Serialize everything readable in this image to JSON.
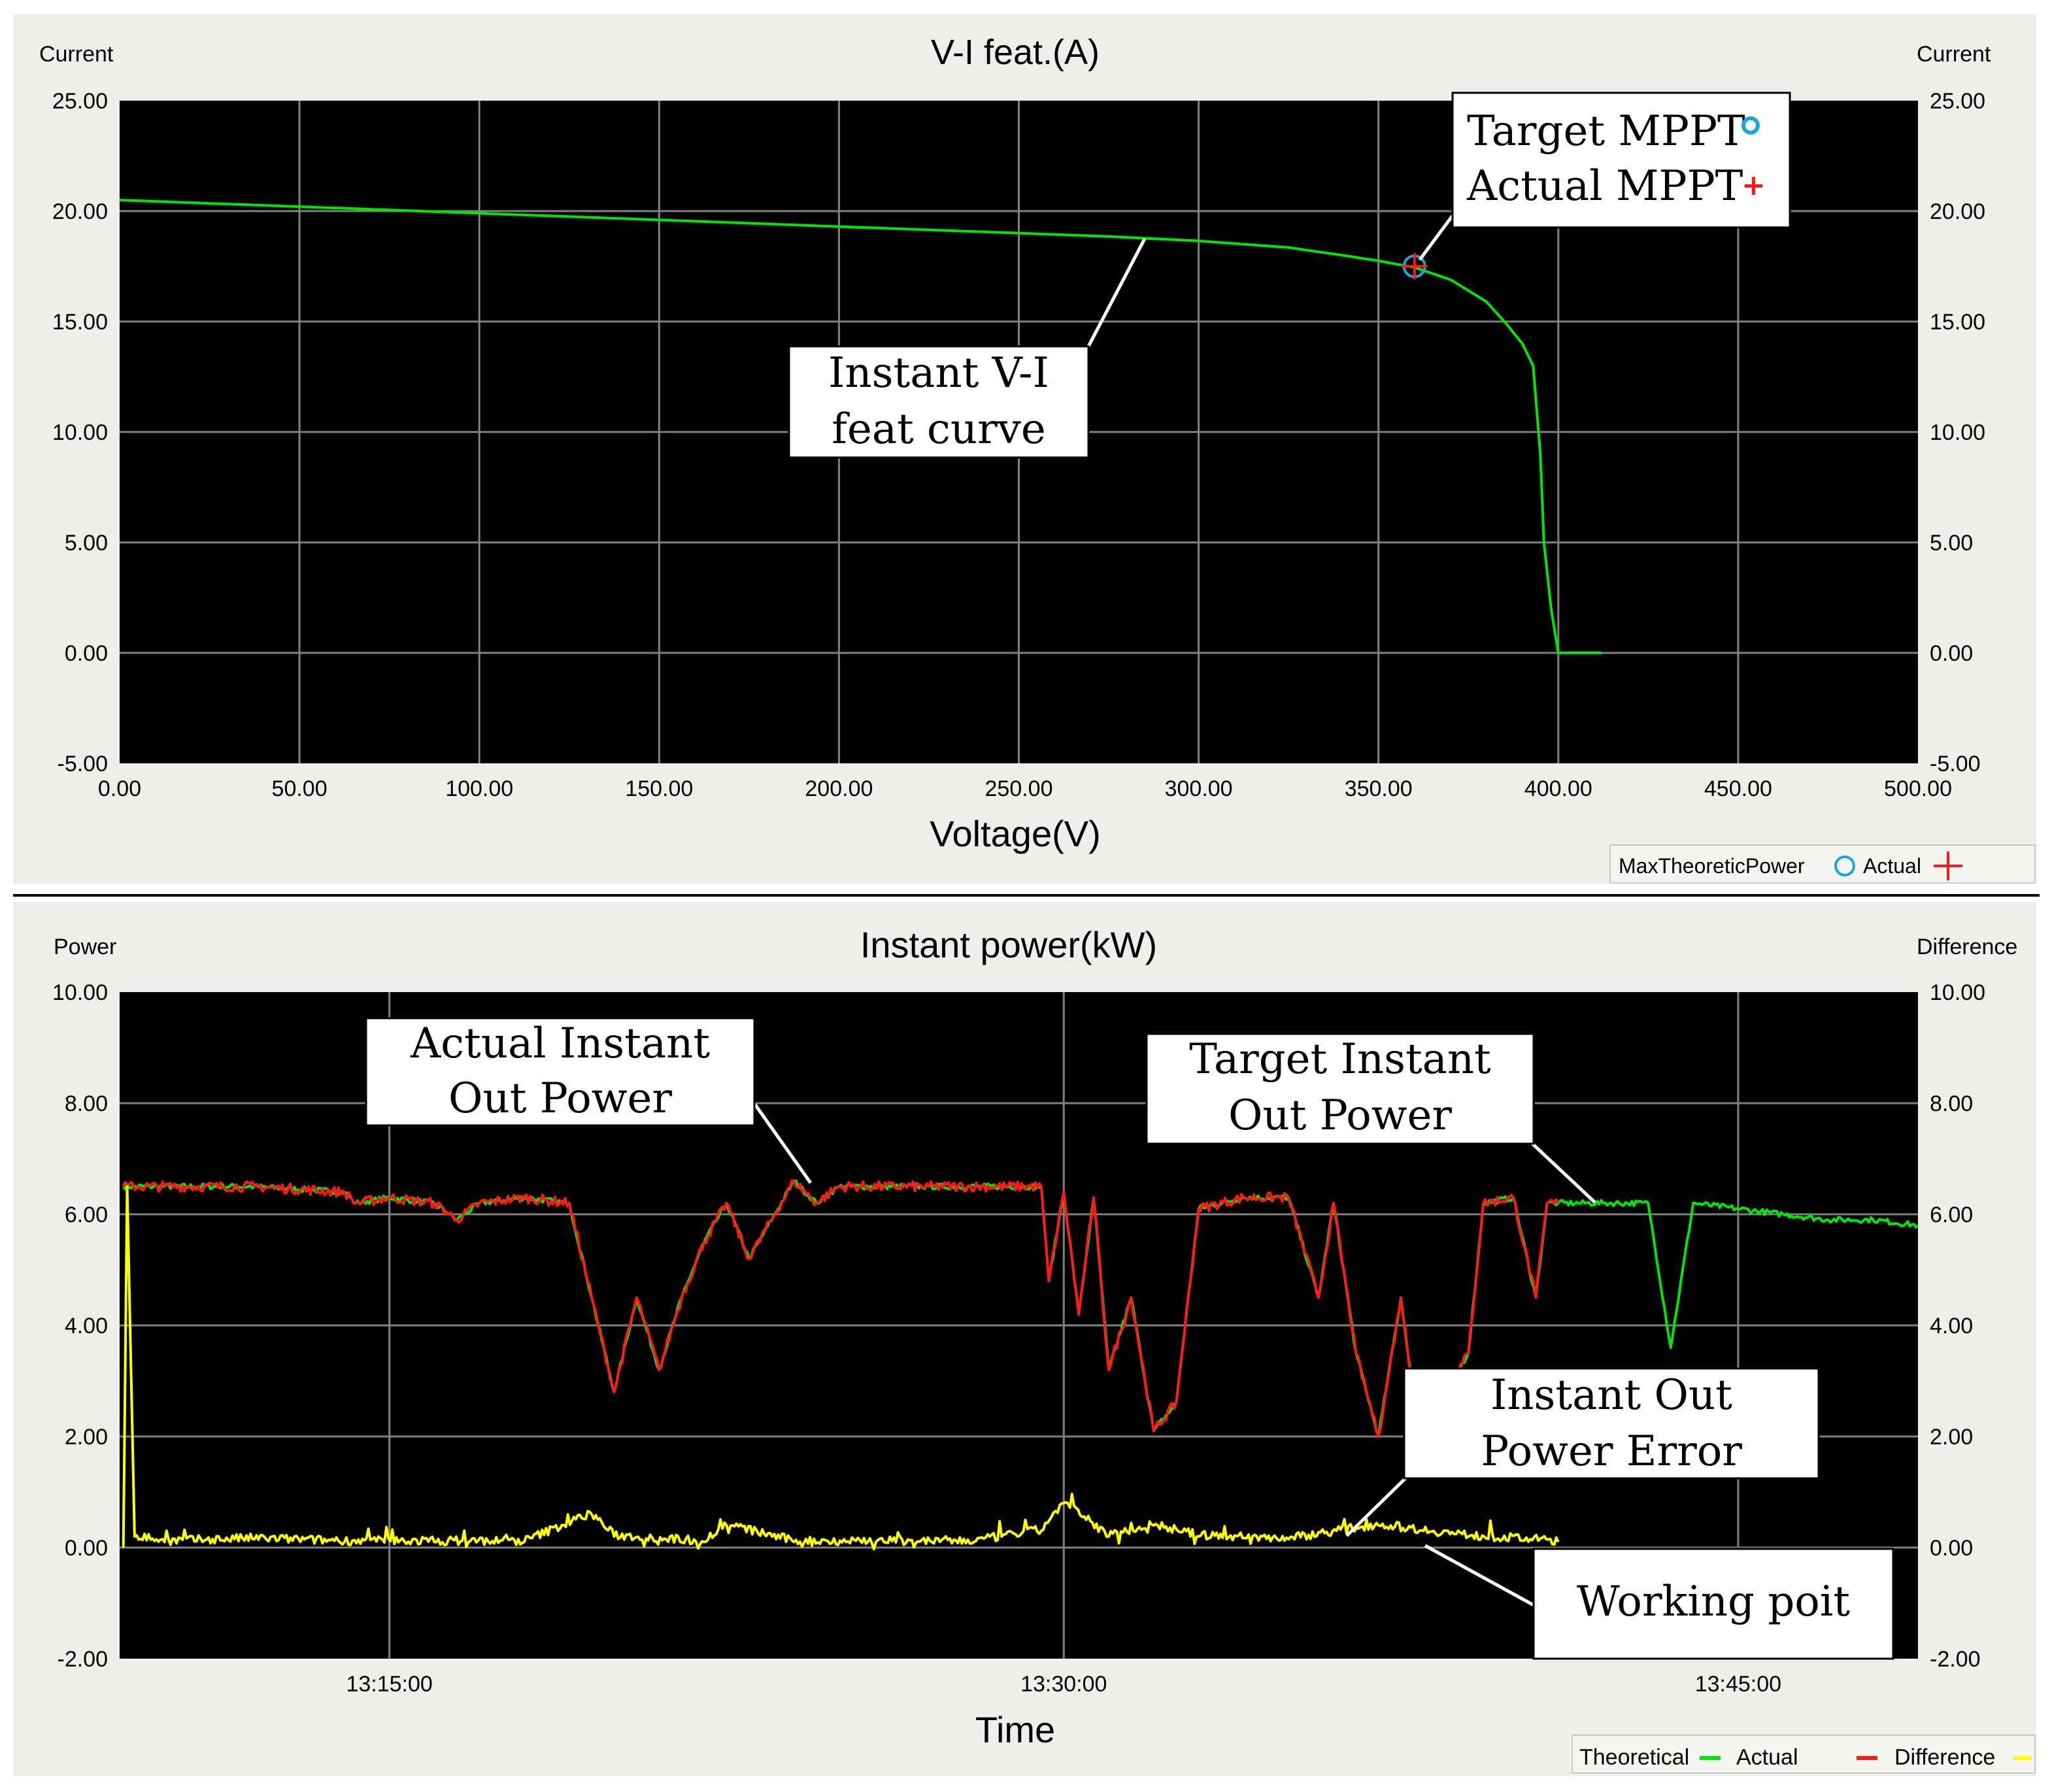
{
  "colors": {
    "plot_bg": "#000000",
    "grid": "#808080",
    "panel_bg": "#eeeeea",
    "theoretical": "#00e600",
    "actual": "#ff1a1a",
    "difference": "#ffff00",
    "target_marker": "#19a6d8"
  },
  "chart_data": [
    {
      "type": "line",
      "title": "V-I feat.(A)",
      "xlabel": "Voltage(V)",
      "ylabel_left": "Current",
      "ylabel_right": "Current",
      "xlim": [
        0,
        500
      ],
      "ylim": [
        -5,
        25
      ],
      "x_ticks": [
        "0.00",
        "50.00",
        "100.00",
        "150.00",
        "200.00",
        "250.00",
        "300.00",
        "350.00",
        "400.00",
        "450.00",
        "500.00"
      ],
      "y_ticks": [
        "25.00",
        "20.00",
        "15.00",
        "10.00",
        "5.00",
        "0.00",
        "-5.00"
      ],
      "grid": true,
      "series": [
        {
          "role": "vi_curve",
          "color": "#00e600",
          "points": [
            [
              0,
              20.5
            ],
            [
              25,
              20.35
            ],
            [
              50,
              20.2
            ],
            [
              75,
              20.05
            ],
            [
              100,
              19.9
            ],
            [
              125,
              19.75
            ],
            [
              150,
              19.6
            ],
            [
              175,
              19.45
            ],
            [
              200,
              19.3
            ],
            [
              225,
              19.15
            ],
            [
              250,
              19.0
            ],
            [
              275,
              18.85
            ],
            [
              300,
              18.65
            ],
            [
              325,
              18.35
            ],
            [
              340,
              18.0
            ],
            [
              350,
              17.75
            ],
            [
              360,
              17.45
            ],
            [
              370,
              16.9
            ],
            [
              380,
              15.9
            ],
            [
              385,
              15.0
            ],
            [
              390,
              14.0
            ],
            [
              393,
              13.0
            ],
            [
              395,
              9.0
            ],
            [
              396,
              5.0
            ],
            [
              398,
              2.0
            ],
            [
              400,
              0.0
            ],
            [
              412,
              0.0
            ]
          ]
        }
      ],
      "markers": {
        "target": {
          "x": 360,
          "y": 17.5
        },
        "actual": {
          "x": 360,
          "y": 17.5
        }
      },
      "legend": {
        "placement": "bottom-right",
        "items": [
          {
            "label": "MaxTheoreticPower",
            "symbol": "circle",
            "color": "#19a6d8"
          },
          {
            "label": "Actual",
            "symbol": "cross",
            "color": "#ff1a1a"
          }
        ]
      },
      "annotations": {
        "mppt_lines": [
          "Target MPPT",
          "Actual MPPT"
        ],
        "curve_lines": [
          "Instant V-I",
          "feat curve"
        ]
      }
    },
    {
      "type": "line",
      "title": "Instant power(kW)",
      "xlabel": "Time",
      "ylabel_left": "Power",
      "ylabel_right": "Difference",
      "xlim": [
        "13:09:00",
        "13:49:00"
      ],
      "ylim": [
        -2,
        10
      ],
      "x_ticks": [
        "13:15:00",
        "13:30:00",
        "13:45:00"
      ],
      "y_ticks": [
        "10.00",
        "8.00",
        "6.00",
        "4.00",
        "2.00",
        "0.00",
        "-2.00"
      ],
      "grid": true,
      "series": [
        {
          "name": "Theoretical",
          "color": "#00e600",
          "points": [
            [
              "13:09:05",
              6.5
            ],
            [
              "13:10",
              6.5
            ],
            [
              "13:12",
              6.5
            ],
            [
              "13:14",
              6.4
            ],
            [
              "13:14:15",
              6.2
            ],
            [
              "13:15",
              6.3
            ],
            [
              "13:16",
              6.2
            ],
            [
              "13:16:30",
              5.9
            ],
            [
              "13:17",
              6.2
            ],
            [
              "13:18",
              6.3
            ],
            [
              "13:19",
              6.2
            ],
            [
              "13:19:30",
              4.5
            ],
            [
              "13:20",
              2.8
            ],
            [
              "13:20:30",
              4.5
            ],
            [
              "13:21",
              3.2
            ],
            [
              "13:21:30",
              4.5
            ],
            [
              "13:22",
              5.5
            ],
            [
              "13:22:30",
              6.2
            ],
            [
              "13:23",
              5.2
            ],
            [
              "13:24",
              6.6
            ],
            [
              "13:24:30",
              6.2
            ],
            [
              "13:25",
              6.5
            ],
            [
              "13:27",
              6.5
            ],
            [
              "13:29:30",
              6.5
            ],
            [
              "13:29:40",
              4.8
            ],
            [
              "13:30",
              6.4
            ],
            [
              "13:30:20",
              4.2
            ],
            [
              "13:30:40",
              6.3
            ],
            [
              "13:31",
              3.2
            ],
            [
              "13:31:30",
              4.5
            ],
            [
              "13:32",
              2.1
            ],
            [
              "13:32:30",
              2.6
            ],
            [
              "13:33",
              6.1
            ],
            [
              "13:34",
              6.3
            ],
            [
              "13:35",
              6.3
            ],
            [
              "13:35:40",
              4.5
            ],
            [
              "13:36",
              6.2
            ],
            [
              "13:36:30",
              3.5
            ],
            [
              "13:37",
              2.0
            ],
            [
              "13:37:30",
              4.5
            ],
            [
              "13:38",
              1.3
            ],
            [
              "13:38:30",
              2.8
            ],
            [
              "13:39",
              3.5
            ],
            [
              "13:39:20",
              6.2
            ],
            [
              "13:40",
              6.3
            ],
            [
              "13:40:30",
              4.5
            ],
            [
              "13:40:45",
              6.2
            ],
            [
              "13:41",
              6.2
            ],
            [
              "13:42",
              6.2
            ],
            [
              "13:43",
              6.2
            ],
            [
              "13:43:30",
              3.6
            ],
            [
              "13:44",
              6.2
            ],
            [
              "13:45",
              6.1
            ],
            [
              "13:46",
              6.0
            ],
            [
              "13:47",
              5.9
            ],
            [
              "13:48",
              5.9
            ],
            [
              "13:49",
              5.8
            ]
          ]
        },
        {
          "name": "Actual",
          "color": "#ff1a1a",
          "points": [
            [
              "13:09:05",
              6.5
            ],
            [
              "13:10",
              6.5
            ],
            [
              "13:12",
              6.5
            ],
            [
              "13:14",
              6.4
            ],
            [
              "13:14:15",
              6.2
            ],
            [
              "13:15",
              6.3
            ],
            [
              "13:16",
              6.2
            ],
            [
              "13:16:30",
              5.9
            ],
            [
              "13:17",
              6.2
            ],
            [
              "13:18",
              6.3
            ],
            [
              "13:19",
              6.2
            ],
            [
              "13:19:30",
              4.5
            ],
            [
              "13:20",
              2.8
            ],
            [
              "13:20:30",
              4.5
            ],
            [
              "13:21",
              3.2
            ],
            [
              "13:21:30",
              4.5
            ],
            [
              "13:22",
              5.5
            ],
            [
              "13:22:30",
              6.2
            ],
            [
              "13:23",
              5.2
            ],
            [
              "13:24",
              6.6
            ],
            [
              "13:24:30",
              6.2
            ],
            [
              "13:25",
              6.5
            ],
            [
              "13:27",
              6.5
            ],
            [
              "13:29:30",
              6.5
            ],
            [
              "13:29:40",
              4.8
            ],
            [
              "13:30",
              6.4
            ],
            [
              "13:30:20",
              4.2
            ],
            [
              "13:30:40",
              6.3
            ],
            [
              "13:31",
              3.2
            ],
            [
              "13:31:30",
              4.5
            ],
            [
              "13:32",
              2.1
            ],
            [
              "13:32:30",
              2.6
            ],
            [
              "13:33",
              6.1
            ],
            [
              "13:34",
              6.3
            ],
            [
              "13:35",
              6.3
            ],
            [
              "13:35:40",
              4.5
            ],
            [
              "13:36",
              6.2
            ],
            [
              "13:36:30",
              3.5
            ],
            [
              "13:37",
              2.0
            ],
            [
              "13:37:30",
              4.5
            ],
            [
              "13:38",
              1.3
            ],
            [
              "13:38:30",
              2.8
            ],
            [
              "13:39",
              3.5
            ],
            [
              "13:39:20",
              6.2
            ],
            [
              "13:40",
              6.3
            ],
            [
              "13:40:30",
              4.5
            ],
            [
              "13:40:45",
              6.2
            ],
            [
              "13:41",
              6.2
            ]
          ]
        },
        {
          "name": "Difference",
          "color": "#ffff00",
          "points": [
            [
              "13:09:05",
              0.0
            ],
            [
              "13:09:10",
              6.5
            ],
            [
              "13:09:20",
              0.2
            ],
            [
              "13:10",
              0.1
            ],
            [
              "13:12",
              0.15
            ],
            [
              "13:14",
              0.1
            ],
            [
              "13:16",
              0.1
            ],
            [
              "13:18",
              0.1
            ],
            [
              "13:19:30",
              0.6
            ],
            [
              "13:20",
              0.2
            ],
            [
              "13:22",
              0.1
            ],
            [
              "13:22:30",
              0.4
            ],
            [
              "13:24",
              0.1
            ],
            [
              "13:26",
              0.1
            ],
            [
              "13:28",
              0.1
            ],
            [
              "13:29:30",
              0.3
            ],
            [
              "13:30",
              0.8
            ],
            [
              "13:30:30",
              0.5
            ],
            [
              "13:31",
              0.2
            ],
            [
              "13:32",
              0.4
            ],
            [
              "13:33",
              0.2
            ],
            [
              "13:35",
              0.15
            ],
            [
              "13:37",
              0.4
            ],
            [
              "13:38",
              0.3
            ],
            [
              "13:39",
              0.2
            ],
            [
              "13:41",
              0.1
            ]
          ]
        }
      ],
      "legend": {
        "placement": "bottom-right",
        "items": [
          {
            "label": "Theoretical",
            "color": "#00e600"
          },
          {
            "label": "Actual",
            "color": "#ff1a1a"
          },
          {
            "label": "Difference",
            "color": "#ffff00"
          }
        ]
      },
      "annotations": {
        "actual_lines": [
          "Actual Instant",
          "Out Power"
        ],
        "target_lines": [
          "Target Instant",
          "Out Power"
        ],
        "error_lines": [
          "Instant Out",
          "Power Error"
        ],
        "working_point": "Working poit"
      }
    }
  ]
}
